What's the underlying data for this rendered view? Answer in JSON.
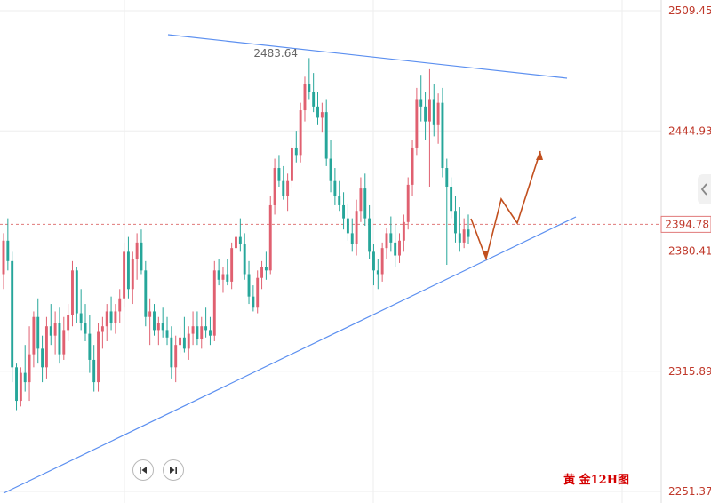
{
  "chart_data": {
    "type": "candlestick",
    "title": "黄 金12H图",
    "y_ticks": [
      "2509.45",
      "2444.93",
      "2380.41",
      "2315.89",
      "2251.37"
    ],
    "current_price_label": "2394.78",
    "current_price": 2394.78,
    "peak_label": "2483.64",
    "peak_value": 2483.64,
    "ylim": [
      2251.37,
      2509.45
    ],
    "up_color": "#e06070",
    "down_color": "#26a69a",
    "trendline_color": "#5b8ff0",
    "projection_color": "#c2501f",
    "candles": [
      [
        2368,
        2390,
        2360,
        2386
      ],
      [
        2386,
        2398,
        2370,
        2375
      ],
      [
        2375,
        2380,
        2310,
        2318
      ],
      [
        2318,
        2320,
        2295,
        2300
      ],
      [
        2300,
        2318,
        2297,
        2315
      ],
      [
        2315,
        2330,
        2305,
        2310
      ],
      [
        2310,
        2340,
        2300,
        2325
      ],
      [
        2325,
        2348,
        2318,
        2345
      ],
      [
        2345,
        2355,
        2320,
        2328
      ],
      [
        2328,
        2335,
        2310,
        2318
      ],
      [
        2318,
        2345,
        2312,
        2340
      ],
      [
        2340,
        2352,
        2330,
        2335
      ],
      [
        2335,
        2348,
        2325,
        2342
      ],
      [
        2342,
        2350,
        2320,
        2325
      ],
      [
        2325,
        2345,
        2322,
        2338
      ],
      [
        2338,
        2352,
        2332,
        2346
      ],
      [
        2346,
        2375,
        2340,
        2370
      ],
      [
        2370,
        2372,
        2342,
        2347
      ],
      [
        2347,
        2360,
        2338,
        2342
      ],
      [
        2342,
        2352,
        2332,
        2336
      ],
      [
        2336,
        2346,
        2315,
        2322
      ],
      [
        2322,
        2330,
        2305,
        2310
      ],
      [
        2310,
        2342,
        2305,
        2337
      ],
      [
        2337,
        2345,
        2328,
        2340
      ],
      [
        2340,
        2352,
        2332,
        2348
      ],
      [
        2348,
        2356,
        2338,
        2342
      ],
      [
        2342,
        2352,
        2336,
        2348
      ],
      [
        2348,
        2360,
        2342,
        2355
      ],
      [
        2355,
        2385,
        2350,
        2380
      ],
      [
        2380,
        2388,
        2355,
        2360
      ],
      [
        2360,
        2380,
        2352,
        2376
      ],
      [
        2376,
        2390,
        2365,
        2385
      ],
      [
        2385,
        2392,
        2368,
        2370
      ],
      [
        2370,
        2375,
        2340,
        2345
      ],
      [
        2345,
        2355,
        2330,
        2348
      ],
      [
        2348,
        2352,
        2335,
        2338
      ],
      [
        2338,
        2345,
        2330,
        2342
      ],
      [
        2342,
        2350,
        2334,
        2338
      ],
      [
        2338,
        2345,
        2330,
        2334
      ],
      [
        2334,
        2340,
        2312,
        2318
      ],
      [
        2318,
        2335,
        2310,
        2330
      ],
      [
        2330,
        2340,
        2325,
        2334
      ],
      [
        2334,
        2345,
        2326,
        2328
      ],
      [
        2328,
        2340,
        2322,
        2336
      ],
      [
        2336,
        2348,
        2330,
        2340
      ],
      [
        2340,
        2348,
        2330,
        2333
      ],
      [
        2333,
        2345,
        2328,
        2340
      ],
      [
        2340,
        2350,
        2334,
        2338
      ],
      [
        2338,
        2345,
        2330,
        2335
      ],
      [
        2335,
        2375,
        2332,
        2370
      ],
      [
        2370,
        2376,
        2362,
        2365
      ],
      [
        2365,
        2372,
        2358,
        2368
      ],
      [
        2368,
        2376,
        2362,
        2364
      ],
      [
        2364,
        2385,
        2360,
        2382
      ],
      [
        2382,
        2392,
        2378,
        2388
      ],
      [
        2388,
        2398,
        2380,
        2384
      ],
      [
        2384,
        2390,
        2365,
        2368
      ],
      [
        2368,
        2375,
        2352,
        2356
      ],
      [
        2356,
        2362,
        2348,
        2350
      ],
      [
        2350,
        2370,
        2347,
        2366
      ],
      [
        2366,
        2375,
        2360,
        2372
      ],
      [
        2372,
        2380,
        2365,
        2370
      ],
      [
        2370,
        2410,
        2368,
        2405
      ],
      [
        2405,
        2430,
        2400,
        2425
      ],
      [
        2425,
        2432,
        2415,
        2418
      ],
      [
        2418,
        2426,
        2408,
        2410
      ],
      [
        2410,
        2422,
        2402,
        2418
      ],
      [
        2418,
        2440,
        2414,
        2436
      ],
      [
        2436,
        2445,
        2428,
        2432
      ],
      [
        2432,
        2460,
        2428,
        2456
      ],
      [
        2456,
        2474,
        2450,
        2470
      ],
      [
        2470,
        2484,
        2462,
        2466
      ],
      [
        2466,
        2476,
        2455,
        2458
      ],
      [
        2458,
        2466,
        2448,
        2452
      ],
      [
        2452,
        2460,
        2444,
        2455
      ],
      [
        2455,
        2462,
        2426,
        2430
      ],
      [
        2430,
        2440,
        2412,
        2418
      ],
      [
        2418,
        2425,
        2405,
        2410
      ],
      [
        2410,
        2418,
        2402,
        2405
      ],
      [
        2405,
        2412,
        2392,
        2398
      ],
      [
        2398,
        2406,
        2386,
        2390
      ],
      [
        2390,
        2398,
        2380,
        2384
      ],
      [
        2384,
        2408,
        2378,
        2402
      ],
      [
        2402,
        2420,
        2396,
        2414
      ],
      [
        2414,
        2422,
        2394,
        2398
      ],
      [
        2398,
        2405,
        2376,
        2380
      ],
      [
        2380,
        2384,
        2362,
        2370
      ],
      [
        2370,
        2376,
        2360,
        2368
      ],
      [
        2368,
        2385,
        2364,
        2382
      ],
      [
        2382,
        2393,
        2376,
        2390
      ],
      [
        2390,
        2399,
        2380,
        2385
      ],
      [
        2385,
        2395,
        2372,
        2378
      ],
      [
        2378,
        2390,
        2374,
        2386
      ],
      [
        2386,
        2400,
        2380,
        2396
      ],
      [
        2396,
        2420,
        2392,
        2416
      ],
      [
        2416,
        2440,
        2410,
        2436
      ],
      [
        2436,
        2468,
        2432,
        2462
      ],
      [
        2462,
        2475,
        2450,
        2458
      ],
      [
        2458,
        2466,
        2440,
        2450
      ],
      [
        2450,
        2478,
        2415,
        2462
      ],
      [
        2462,
        2470,
        2442,
        2448
      ],
      [
        2448,
        2465,
        2438,
        2460
      ],
      [
        2460,
        2468,
        2420,
        2425
      ],
      [
        2425,
        2430,
        2373,
        2415
      ],
      [
        2415,
        2420,
        2398,
        2402
      ],
      [
        2402,
        2410,
        2385,
        2390
      ],
      [
        2390,
        2404,
        2380,
        2385
      ],
      [
        2385,
        2398,
        2382,
        2392
      ],
      [
        2392,
        2400,
        2384,
        2388
      ]
    ]
  }
}
